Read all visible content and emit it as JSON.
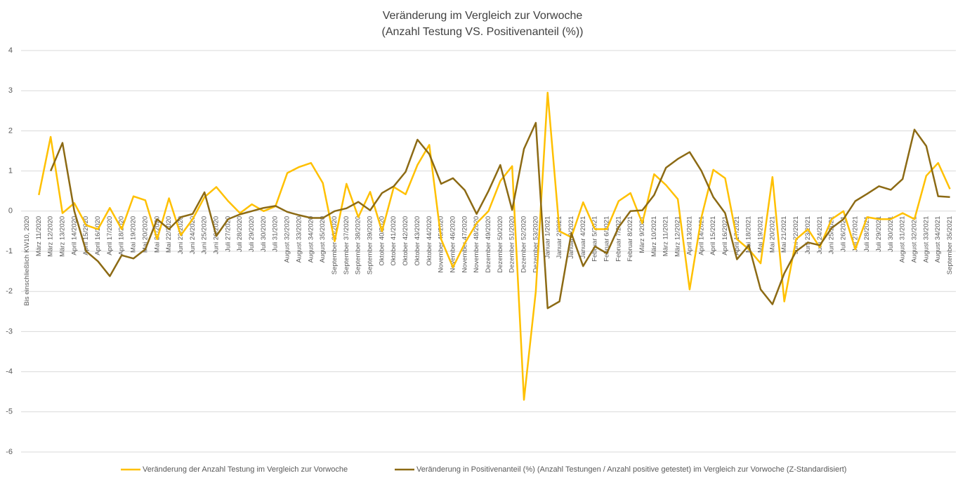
{
  "chart_data": {
    "type": "line",
    "title": "Veränderung im Vergleich zur Vorwoche",
    "subtitle": "(Anzahl Testung VS. Positivenanteil (%))",
    "categories": [
      "Bis einschließlich KW10, 2020",
      "März 11/2020",
      "März 12/2020",
      "März 13/2020",
      "April 14/2020",
      "April 15/2020",
      "April 16/2020",
      "April 17/2020",
      "April 18/2020",
      "Mai 19/2020",
      "Mai 20/2020",
      "Mai 21/2020",
      "Mai 22/2020",
      "Juni 23/2020",
      "Juni 24/2020",
      "Juni 25/2020",
      "Juni 26/2020",
      "Juli 27/2020",
      "Juli 28/2020",
      "Juli 29/2020",
      "Juli 30/2020",
      "Juli 31/2020",
      "August 32/2020",
      "August 33/2020",
      "August 34/2020",
      "August 35/2020",
      "September 36/2020",
      "September 37/2020",
      "September 38/2020",
      "September 39/2020",
      "Oktober 40/2020",
      "Oktober 41/2020",
      "Oktober 42/2020",
      "Oktober 43/2020",
      "Oktober 44/2020",
      "November 45/2020",
      "November 46/2020",
      "November 47/2020",
      "November 48/2020",
      "Dezember 49/2020",
      "Dezember 50/2020",
      "Dezember 51/2020",
      "Dezember 52/2020",
      "Dezember 53/2020",
      "Januar 1/2021",
      "Januar 2/2021",
      "Januar 3/2021",
      "Januar 4/2021",
      "Februar 5/2021",
      "Februar 6/2021",
      "Februar 7/2021",
      "Februar 8/2021",
      "März 9/2021",
      "März 10/2021",
      "März 11/2021",
      "März 12/2021",
      "April 13/2021",
      "April 14/2021",
      "April 15/2021",
      "April 16/2021",
      "April 17/2021",
      "Mai 18/2021",
      "Mai 19/2021",
      "Mai 20/2021",
      "Mai 21/2021",
      "Juni 22/2021",
      "Juni 23/2021",
      "Juni 24/2021",
      "Juni 25/2021",
      "Juli 26/2021",
      "Juli 27/2021",
      "Juli 28/2021",
      "Juli 29/2021",
      "Juli 30/2021",
      "August 31/2021",
      "August 32/2021",
      "August 33/2021",
      "August 34/2021",
      "September 35/2021"
    ],
    "series": [
      {
        "name": "Veränderung der Anzahl Testung im Vergleich zur Vorwoche",
        "color": "#FFC000",
        "values": [
          null,
          0.4,
          1.85,
          -0.05,
          0.2,
          -0.35,
          -0.45,
          0.08,
          -0.45,
          0.37,
          0.27,
          -0.7,
          0.32,
          -0.6,
          -0.2,
          0.35,
          0.6,
          0.25,
          -0.05,
          0.17,
          0.0,
          0.12,
          0.95,
          1.1,
          1.2,
          0.7,
          -0.75,
          0.68,
          -0.15,
          0.48,
          -0.5,
          0.6,
          0.42,
          1.15,
          1.65,
          -0.7,
          -1.4,
          -0.8,
          -0.3,
          0.0,
          0.75,
          1.12,
          -4.7,
          -2.0,
          2.95,
          -0.5,
          -0.65,
          0.22,
          -0.45,
          -0.45,
          0.25,
          0.45,
          -0.3,
          0.92,
          0.65,
          0.3,
          -1.95,
          -0.15,
          1.03,
          0.82,
          -0.7,
          -0.95,
          -1.3,
          0.85,
          -2.25,
          -0.7,
          -0.45,
          -0.9,
          -0.2,
          0.0,
          -0.95,
          -0.15,
          -0.2,
          -0.2,
          -0.05,
          -0.2,
          0.88,
          1.2,
          0.55
        ]
      },
      {
        "name": "Veränderung in Positivenanteil (%) (Anzahl Testungen / Anzahl positive getestet) im Vergleich zur Vorwoche (Z-Standardisiert)",
        "color": "#8C6A14",
        "values": [
          null,
          null,
          1.0,
          1.7,
          0.0,
          -1.0,
          -1.25,
          -1.62,
          -1.1,
          -1.18,
          -0.95,
          -0.2,
          -0.45,
          -0.15,
          -0.07,
          0.47,
          -0.62,
          -0.2,
          -0.08,
          0.0,
          0.08,
          0.13,
          -0.02,
          -0.1,
          -0.17,
          -0.17,
          0.0,
          0.07,
          0.23,
          0.02,
          0.45,
          0.62,
          0.98,
          1.78,
          1.42,
          0.68,
          0.82,
          0.52,
          -0.07,
          0.5,
          1.15,
          0.03,
          1.55,
          2.2,
          -2.42,
          -2.25,
          -0.55,
          -1.37,
          -0.88,
          -1.05,
          -0.4,
          0.0,
          0.02,
          0.4,
          1.08,
          1.3,
          1.47,
          1.0,
          0.35,
          -0.05,
          -1.2,
          -0.85,
          -1.95,
          -2.32,
          -1.55,
          -1.0,
          -0.78,
          -0.85,
          -0.42,
          -0.2,
          0.25,
          0.43,
          0.62,
          0.53,
          0.8,
          2.03,
          1.62,
          0.37,
          0.35
        ]
      }
    ],
    "ylim": [
      -6,
      4
    ],
    "yticks": [
      -6,
      -5,
      -4,
      -3,
      -2,
      -1,
      0,
      1,
      2,
      3,
      4
    ],
    "grid": true
  }
}
